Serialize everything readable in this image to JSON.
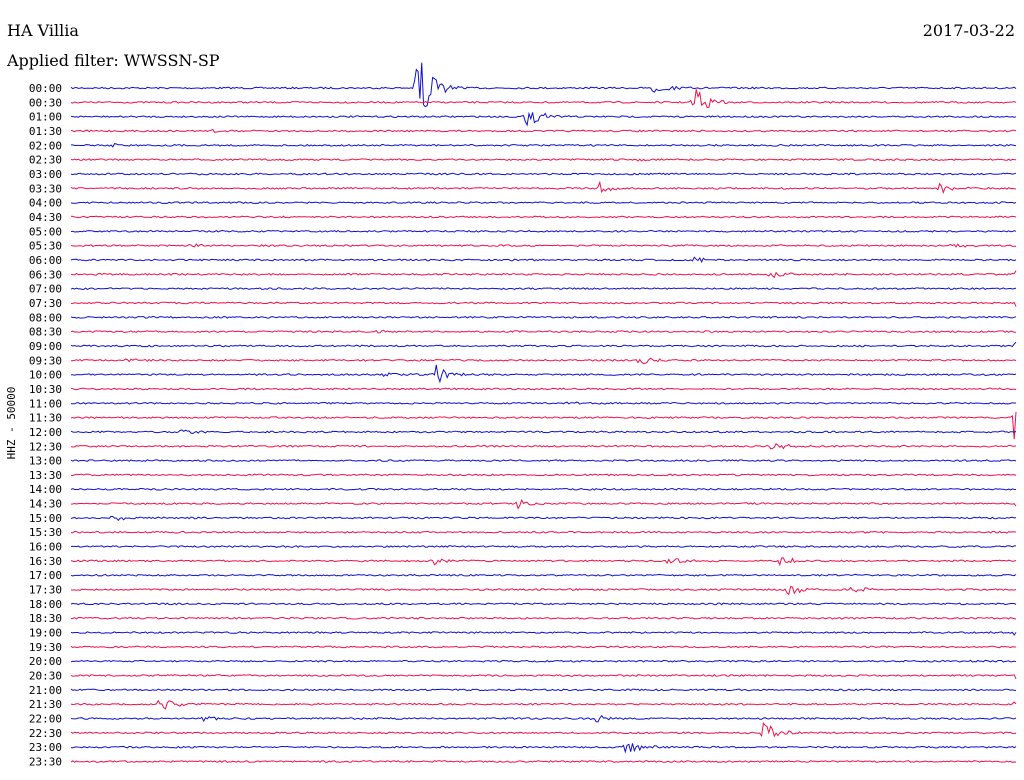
{
  "chart_data": {
    "type": "line",
    "title": "HA Villia",
    "subtitle": "Applied filter: WWSSN-SP",
    "date": "2017-03-22",
    "ylabel": "HHZ - 50000",
    "colors": [
      "#1010d0",
      "#f0104a"
    ],
    "grid": false,
    "tick_labels": [
      "00:00",
      "00:30",
      "01:00",
      "01:30",
      "02:00",
      "02:30",
      "03:00",
      "03:30",
      "04:00",
      "04:30",
      "05:00",
      "05:30",
      "06:00",
      "06:30",
      "07:00",
      "07:30",
      "08:00",
      "08:30",
      "09:00",
      "09:30",
      "10:00",
      "10:30",
      "11:00",
      "11:30",
      "12:00",
      "12:30",
      "13:00",
      "13:30",
      "14:00",
      "14:30",
      "15:00",
      "15:30",
      "16:00",
      "16:30",
      "17:00",
      "17:30",
      "18:00",
      "18:30",
      "19:00",
      "19:30",
      "20:00",
      "20:30",
      "21:00",
      "21:30",
      "22:00",
      "22:30",
      "23:00",
      "23:30"
    ],
    "x_unit": "minutes into 30-minute row",
    "events": [
      {
        "row": 0,
        "minute": 11.0,
        "amp": 42
      },
      {
        "row": 0,
        "minute": 18.5,
        "amp": 6
      },
      {
        "row": 1,
        "minute": 19.8,
        "amp": 16
      },
      {
        "row": 2,
        "minute": 14.5,
        "amp": 12
      },
      {
        "row": 3,
        "minute": 4.5,
        "amp": 2
      },
      {
        "row": 4,
        "minute": 1.3,
        "amp": 2
      },
      {
        "row": 5,
        "minute": 18.0,
        "amp": 2
      },
      {
        "row": 7,
        "minute": 16.8,
        "amp": 6
      },
      {
        "row": 7,
        "minute": 27.6,
        "amp": 6
      },
      {
        "row": 11,
        "minute": 3.8,
        "amp": 3
      },
      {
        "row": 11,
        "minute": 28.0,
        "amp": 3
      },
      {
        "row": 12,
        "minute": 19.8,
        "amp": 3
      },
      {
        "row": 13,
        "minute": 22.2,
        "amp": 4
      },
      {
        "row": 13,
        "minute": 30.0,
        "amp": 5
      },
      {
        "row": 15,
        "minute": 30.0,
        "amp": 4
      },
      {
        "row": 17,
        "minute": 9.8,
        "amp": 3
      },
      {
        "row": 18,
        "minute": 30.0,
        "amp": 4
      },
      {
        "row": 19,
        "minute": 18.0,
        "amp": 6
      },
      {
        "row": 19,
        "minute": 1.8,
        "amp": 3
      },
      {
        "row": 20,
        "minute": 11.6,
        "amp": 10
      },
      {
        "row": 20,
        "minute": 10.0,
        "amp": 3
      },
      {
        "row": 22,
        "minute": 15.8,
        "amp": 2
      },
      {
        "row": 23,
        "minute": 30.0,
        "amp": 36
      },
      {
        "row": 24,
        "minute": 3.5,
        "amp": 3
      },
      {
        "row": 25,
        "minute": 22.3,
        "amp": 5
      },
      {
        "row": 29,
        "minute": 14.2,
        "amp": 5
      },
      {
        "row": 29,
        "minute": 30.0,
        "amp": 4
      },
      {
        "row": 30,
        "minute": 1.3,
        "amp": 3
      },
      {
        "row": 32,
        "minute": 28.0,
        "amp": 2
      },
      {
        "row": 33,
        "minute": 11.5,
        "amp": 4
      },
      {
        "row": 33,
        "minute": 19.0,
        "amp": 5
      },
      {
        "row": 33,
        "minute": 22.5,
        "amp": 5
      },
      {
        "row": 35,
        "minute": 22.8,
        "amp": 8
      },
      {
        "row": 35,
        "minute": 24.8,
        "amp": 5
      },
      {
        "row": 38,
        "minute": 30.0,
        "amp": 4
      },
      {
        "row": 41,
        "minute": 30.0,
        "amp": 4
      },
      {
        "row": 43,
        "minute": 2.8,
        "amp": 9
      },
      {
        "row": 43,
        "minute": 30.0,
        "amp": 4
      },
      {
        "row": 44,
        "minute": 4.2,
        "amp": 3
      },
      {
        "row": 44,
        "minute": 16.6,
        "amp": 5
      },
      {
        "row": 45,
        "minute": 22.0,
        "amp": 12
      },
      {
        "row": 46,
        "minute": 17.6,
        "amp": 8
      }
    ]
  }
}
